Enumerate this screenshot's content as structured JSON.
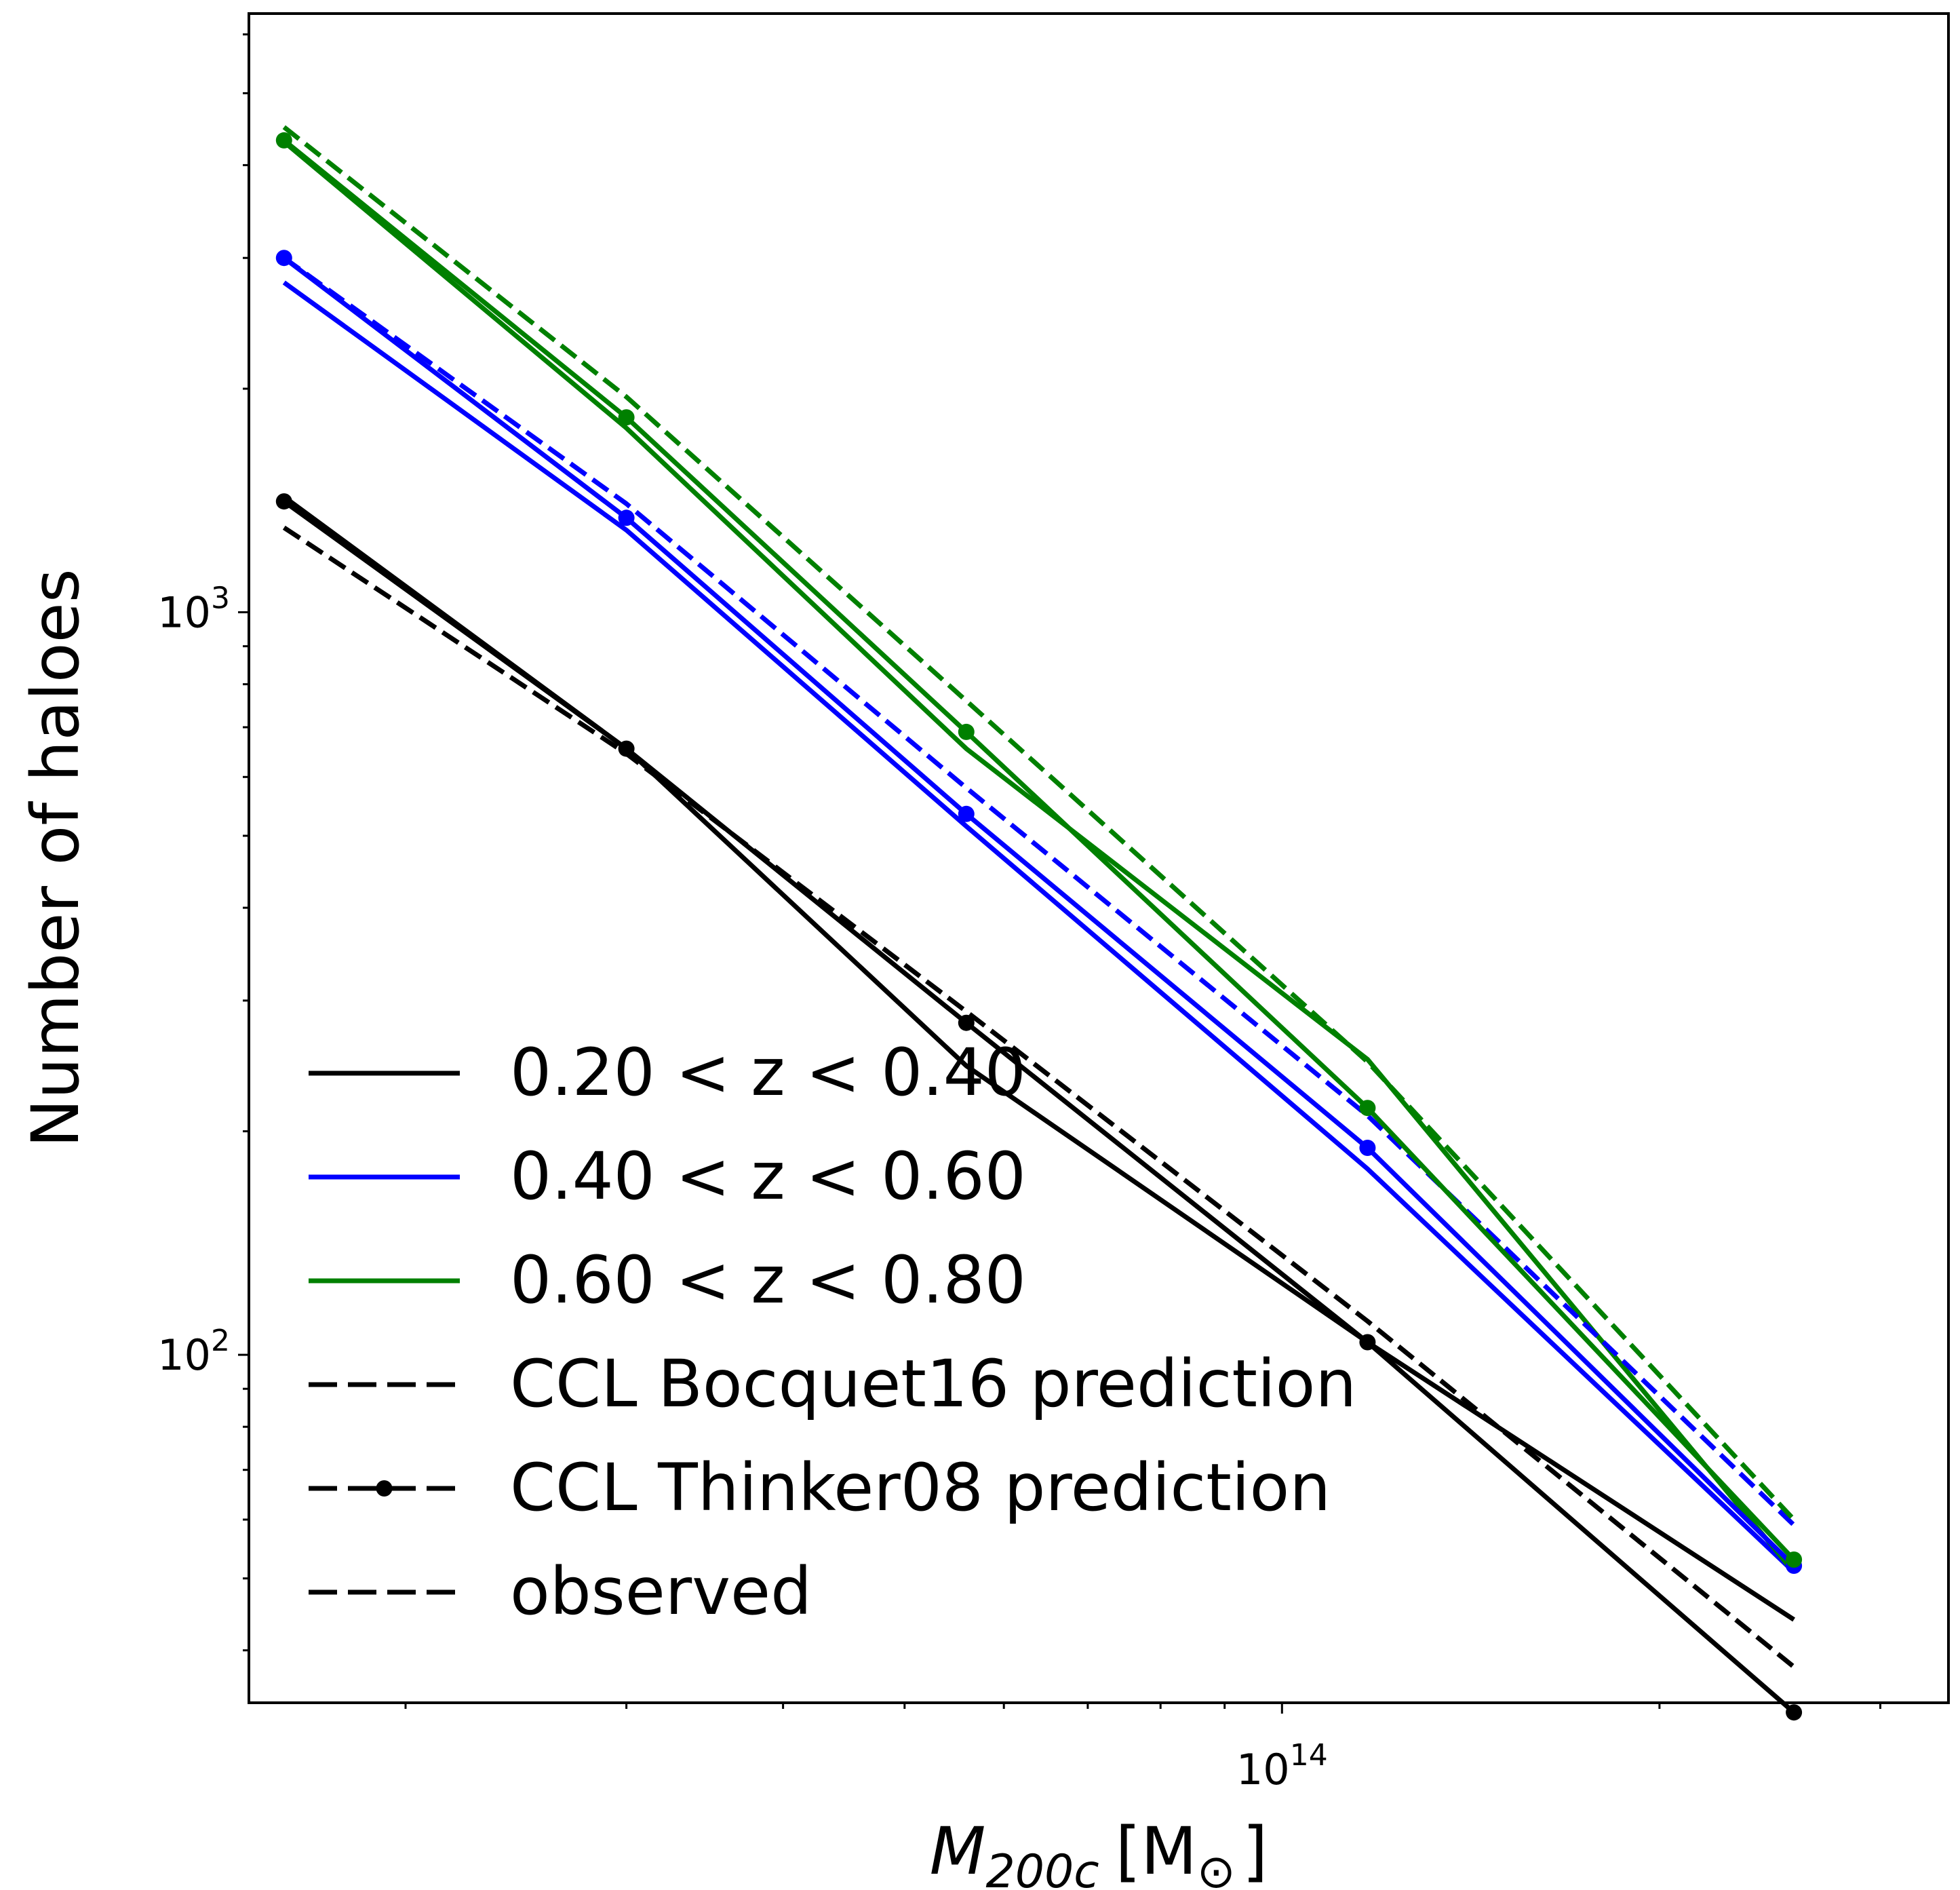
{
  "chart_data": {
    "type": "line",
    "xscale": "log",
    "yscale": "log",
    "xlim": [
      15000000000000.0,
      340000000000000.0
    ],
    "ylim": [
      34,
      6400
    ],
    "xlabel_math": {
      "base": "M",
      "sub": "200c",
      "unit": "[M",
      "unit_sub": "⊙",
      "unit_close": "]"
    },
    "ylabel": "Number of haloes",
    "xticks": [
      {
        "value": 100000000000000.0,
        "base": "10",
        "exp": "14"
      }
    ],
    "yticks": [
      {
        "value": 100,
        "base": "10",
        "exp": "2"
      },
      {
        "value": 1000,
        "base": "10",
        "exp": "3"
      }
    ],
    "x": [
      16000000000000.0,
      30000000000000.0,
      56000000000000.0,
      117000000000000.0,
      256000000000000.0
    ],
    "series": [
      {
        "name": "0.20 < z < 0.40",
        "color": "#000000",
        "group": "observed",
        "style": "solid",
        "values": [
          1430,
          655,
          245,
          104,
          44
        ]
      },
      {
        "name": "0.20 < z < 0.40",
        "color": "#000000",
        "group": "bocquet",
        "style": "dashed",
        "values": [
          1300,
          645,
          290,
          111,
          38
        ]
      },
      {
        "name": "0.20 < z < 0.40",
        "color": "#000000",
        "group": "tinker",
        "style": "solid-marker",
        "values": [
          1410,
          655,
          280,
          104,
          33
        ]
      },
      {
        "name": "0.40 < z < 0.60",
        "color": "#0000ff",
        "group": "observed",
        "style": "solid",
        "values": [
          2780,
          1290,
          515,
          178,
          51
        ]
      },
      {
        "name": "0.40 < z < 0.60",
        "color": "#0000ff",
        "group": "bocquet",
        "style": "dashed",
        "values": [
          3000,
          1400,
          580,
          210,
          59
        ]
      },
      {
        "name": "0.40 < z < 0.60",
        "color": "#0000ff",
        "group": "tinker",
        "style": "solid-marker",
        "values": [
          3000,
          1340,
          535,
          190,
          52
        ]
      },
      {
        "name": "0.60 < z < 0.80",
        "color": "#008000",
        "group": "observed",
        "style": "solid",
        "values": [
          4300,
          1770,
          655,
          250,
          51
        ]
      },
      {
        "name": "0.60 < z < 0.80",
        "color": "#008000",
        "group": "bocquet",
        "style": "dashed",
        "values": [
          4500,
          1950,
          760,
          248,
          60
        ]
      },
      {
        "name": "0.60 < z < 0.80",
        "color": "#008000",
        "group": "tinker",
        "style": "solid-marker",
        "values": [
          4320,
          1830,
          690,
          215,
          53
        ]
      }
    ],
    "legend": {
      "position": "lower-left",
      "entries": [
        {
          "label": "0.20 < z < 0.40",
          "color": "#000000",
          "style": "solid"
        },
        {
          "label": "0.40 < z < 0.60",
          "color": "#0000ff",
          "style": "solid"
        },
        {
          "label": "0.60 < z < 0.80",
          "color": "#008000",
          "style": "solid"
        },
        {
          "label": "CCL Bocquet16 prediction",
          "color": "#000000",
          "style": "dashed"
        },
        {
          "label": "CCL Thinker08 prediction",
          "color": "#000000",
          "style": "dash-dot-marker"
        },
        {
          "label": "observed",
          "color": "#000000",
          "style": "dashed"
        }
      ]
    },
    "grid": false
  }
}
